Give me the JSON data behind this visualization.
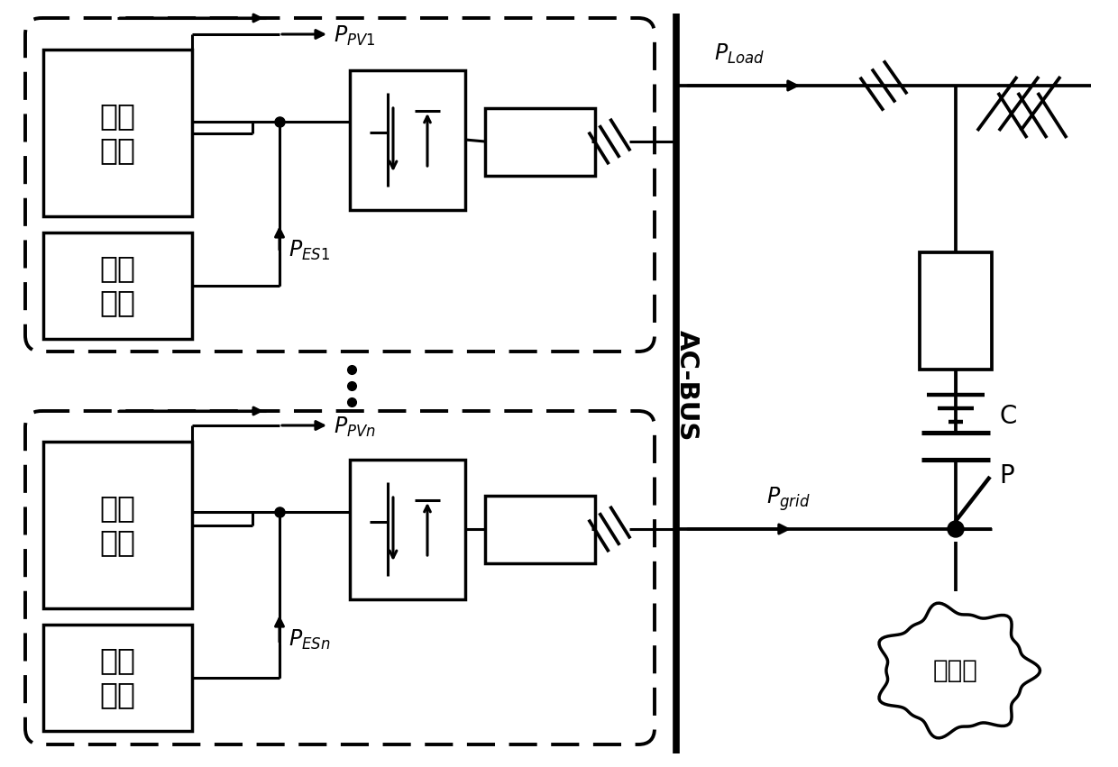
{
  "bg_color": "#ffffff",
  "line_color": "#000000",
  "lw": 2.2,
  "dlw": 2.8,
  "fig_width": 12.4,
  "fig_height": 8.51,
  "label_PPV1": "$P_{PV1}$",
  "label_PPVn": "$P_{PVn}$",
  "label_PES1": "$P_{ES1}$",
  "label_PESn": "$P_{ESn}$",
  "label_PLoad": "$P_{Load}$",
  "label_Pgrid": "$P_{grid}$",
  "label_guangfu": "光伏\n单元",
  "label_chuneng": "储能\n单元",
  "label_zhudianwang": "主电网",
  "ac_bus_label": "AC-BUS"
}
